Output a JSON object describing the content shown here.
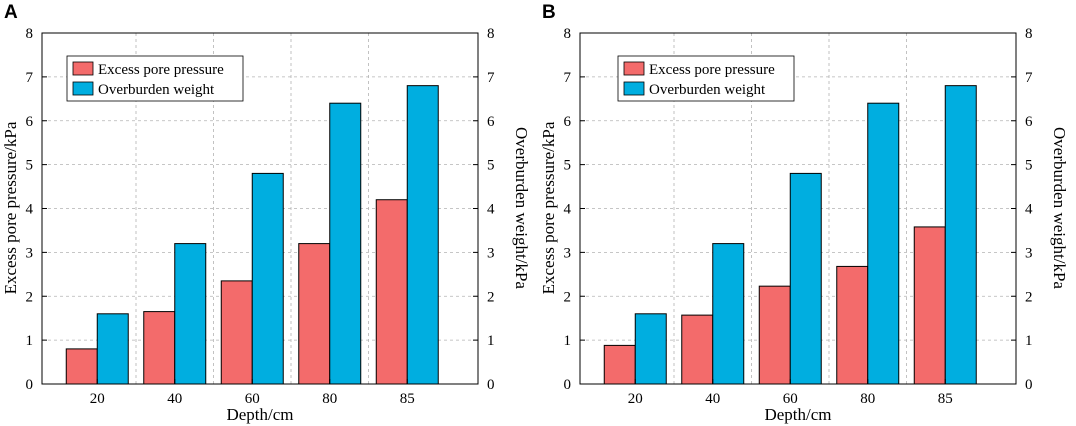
{
  "chart_data": [
    {
      "type": "bar",
      "panel_label": "A",
      "categories": [
        "20",
        "40",
        "60",
        "80",
        "85"
      ],
      "series": [
        {
          "name": "Excess pore pressure",
          "color": "#f36b6b",
          "values": [
            0.8,
            1.65,
            2.35,
            3.2,
            4.2
          ]
        },
        {
          "name": "Overburden weight",
          "color": "#00aee0",
          "values": [
            1.6,
            3.2,
            4.8,
            6.4,
            6.8
          ]
        }
      ],
      "xlabel": "Depth/cm",
      "ylabel": "Excess pore pressure/kPa",
      "y2label": "Overburden weight/kPa",
      "ylim": [
        0,
        8
      ],
      "y2lim": [
        0,
        8
      ],
      "yticks": [
        "0",
        "1",
        "2",
        "3",
        "4",
        "5",
        "6",
        "7",
        "8"
      ],
      "grid": true,
      "legend_position": "top-left"
    },
    {
      "type": "bar",
      "panel_label": "B",
      "categories": [
        "20",
        "40",
        "60",
        "80",
        "85"
      ],
      "series": [
        {
          "name": "Excess pore pressure",
          "color": "#f36b6b",
          "values": [
            0.88,
            1.57,
            2.23,
            2.68,
            3.58
          ]
        },
        {
          "name": "Overburden weight",
          "color": "#00aee0",
          "values": [
            1.6,
            3.2,
            4.8,
            6.4,
            6.8
          ]
        }
      ],
      "xlabel": "Depth/cm",
      "ylabel": "Excess pore pressure/kPa",
      "y2label": "Overburden weight/kPa",
      "ylim": [
        0,
        8
      ],
      "y2lim": [
        0,
        8
      ],
      "yticks": [
        "0",
        "1",
        "2",
        "3",
        "4",
        "5",
        "6",
        "7",
        "8"
      ],
      "grid": true,
      "legend_position": "top-left"
    }
  ]
}
